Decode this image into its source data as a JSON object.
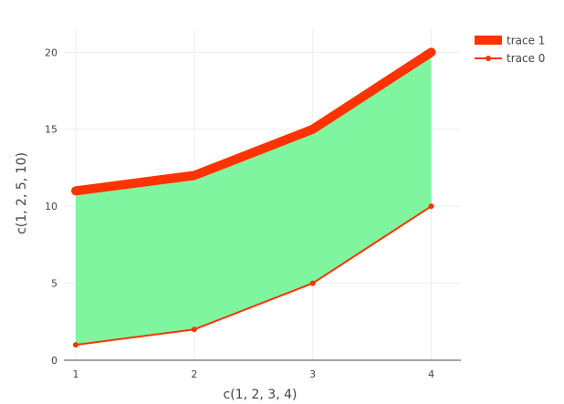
{
  "chart_data": {
    "type": "area",
    "x": [
      1,
      2,
      3,
      4
    ],
    "series": [
      {
        "name": "trace 0",
        "values": [
          1,
          2,
          5,
          10
        ],
        "color": "#ff3300",
        "mode": "lines+markers"
      },
      {
        "name": "trace 1",
        "values": [
          11,
          12,
          15,
          20
        ],
        "color": "#ff3300",
        "mode": "lines",
        "fill": "tonexty",
        "fillcolor": "#80f5a0"
      }
    ],
    "xlabel": "c(1, 2, 3, 4)",
    "ylabel": "c(1, 2, 5, 10)",
    "x_ticks": [
      "1",
      "2",
      "3",
      "4"
    ],
    "y_ticks": [
      "0",
      "5",
      "10",
      "15",
      "20"
    ],
    "xlim": [
      0.9,
      4.25
    ],
    "ylim": [
      0,
      21.5
    ],
    "grid": true,
    "legend": {
      "position": "top-right",
      "entries": [
        "trace 1",
        "trace 0"
      ]
    }
  }
}
